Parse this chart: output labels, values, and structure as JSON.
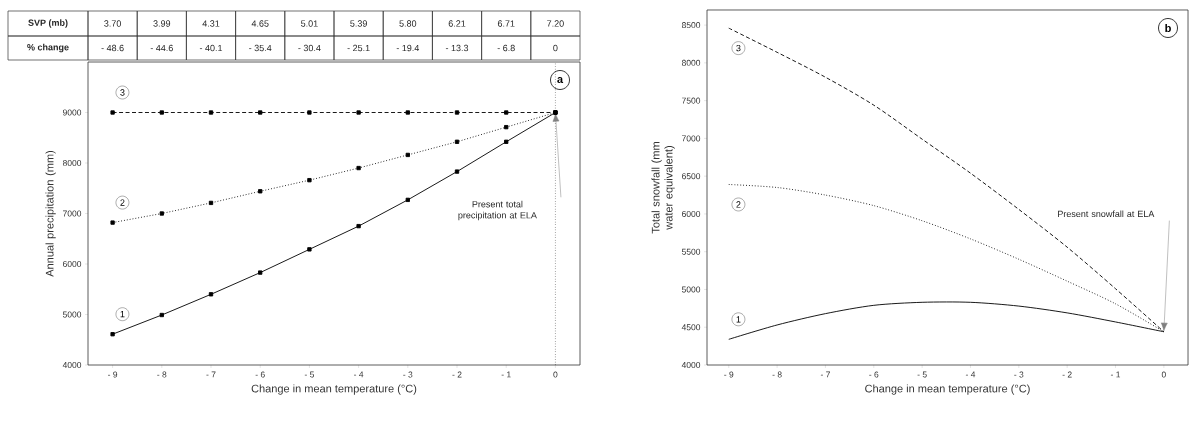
{
  "chart_data": [
    {
      "type": "line",
      "xlabel": "Change in mean temperature (°C)",
      "ylabel": "Annual precipitation (mm)",
      "x": [
        -9,
        -8,
        -7,
        -6,
        -5,
        -4,
        -3,
        -2,
        -1,
        0
      ],
      "series": [
        {
          "name": "1",
          "color": "#000000",
          "line_style": "solid",
          "values": [
            4610,
            4990,
            5400,
            5830,
            6290,
            6750,
            7270,
            7830,
            8420,
            9000
          ]
        },
        {
          "name": "2",
          "color": "#000000",
          "line_style": "dotted",
          "values": [
            6820,
            7000,
            7210,
            7440,
            7660,
            7900,
            8160,
            8420,
            8710,
            9000
          ]
        },
        {
          "name": "3",
          "color": "#000000",
          "line_style": "dashed",
          "values": [
            9000,
            9000,
            9000,
            9000,
            9000,
            9000,
            9000,
            9000,
            9000,
            9000
          ]
        }
      ],
      "marker": "square",
      "xlim": [
        -9.5,
        0.5
      ],
      "ylim": [
        4000,
        10000
      ],
      "xticks": [
        {
          "value": -9,
          "label": "- 9"
        },
        {
          "value": -8,
          "label": "- 8"
        },
        {
          "value": -7,
          "label": "- 7"
        },
        {
          "value": -6,
          "label": "- 6"
        },
        {
          "value": -5,
          "label": "- 5"
        },
        {
          "value": -4,
          "label": "- 4"
        },
        {
          "value": -3,
          "label": "- 3"
        },
        {
          "value": -2,
          "label": "- 2"
        },
        {
          "value": -1,
          "label": "- 1"
        },
        0
      ],
      "yticks": [
        4000,
        5000,
        6000,
        7000,
        8000,
        9000
      ],
      "ref_lines": [
        {
          "axis": "x",
          "value": 0,
          "color": "#000000",
          "line_style": "dotted"
        }
      ],
      "annotations": [
        "a",
        "SVP (mb)",
        "3.70",
        "3.99",
        "4.31",
        "4.65",
        "5.01",
        "5.39",
        "5.80",
        "6.21",
        "6.71",
        "7.20",
        "% change",
        "- 48.6",
        "- 44.6",
        "- 40.1",
        "- 35.4",
        "- 30.4",
        "- 25.1",
        "- 19.4",
        "- 13.3",
        "- 6.8",
        "0",
        "Present total precipitation at ELA"
      ]
    },
    {
      "type": "line",
      "xlabel": "Change in mean temperature (°C)",
      "ylabel": "Total snowfall (mm water equivalent)",
      "x": [
        -9,
        -8,
        -7,
        -6,
        -5,
        -4,
        -3,
        -2,
        -1,
        0
      ],
      "series": [
        {
          "name": "1",
          "color": "#000000",
          "line_style": "solid",
          "values": [
            4340,
            4530,
            4680,
            4790,
            4830,
            4830,
            4780,
            4690,
            4570,
            4440
          ]
        },
        {
          "name": "2",
          "color": "#000000",
          "line_style": "dotted",
          "values": [
            6390,
            6350,
            6250,
            6110,
            5910,
            5670,
            5400,
            5110,
            4810,
            4440
          ]
        },
        {
          "name": "3",
          "color": "#000000",
          "line_style": "dashed",
          "values": [
            8460,
            8140,
            7810,
            7440,
            6990,
            6540,
            6060,
            5560,
            5010,
            4440
          ]
        }
      ],
      "marker": "none",
      "xlim": [
        -9.45,
        0.5
      ],
      "ylim": [
        4000,
        8700
      ],
      "xticks": [
        {
          "value": -9,
          "label": "- 9"
        },
        {
          "value": -8,
          "label": "- 8"
        },
        {
          "value": -7,
          "label": "- 7"
        },
        {
          "value": -6,
          "label": "- 6"
        },
        {
          "value": -5,
          "label": "- 5"
        },
        {
          "value": -4,
          "label": "- 4"
        },
        {
          "value": -3,
          "label": "- 3"
        },
        {
          "value": -2,
          "label": "- 2"
        },
        {
          "value": -1,
          "label": "- 1"
        },
        0
      ],
      "yticks": [
        4000,
        4500,
        5000,
        5500,
        6000,
        6500,
        7000,
        7500,
        8000,
        8500
      ],
      "annotations": [
        "b",
        "Present snowfall at ELA"
      ]
    }
  ]
}
